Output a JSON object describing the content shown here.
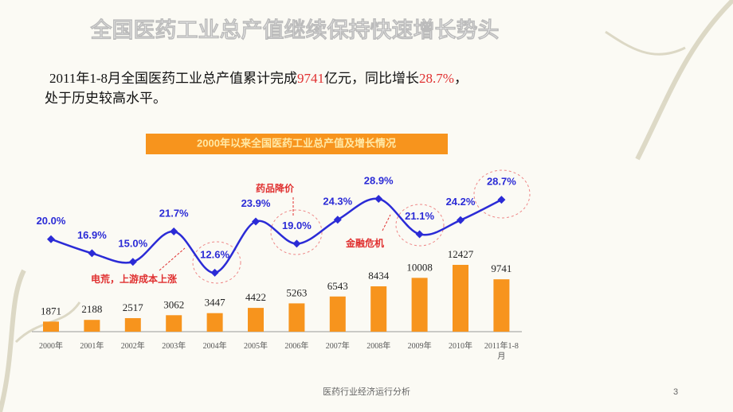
{
  "slide": {
    "title": "全国医药工业总产值继续保持快速增长势头",
    "body_runs": [
      {
        "text": "2011年1-8月全国医药工业总产值累计完成",
        "highlight": false
      },
      {
        "text": "9741",
        "highlight": true
      },
      {
        "text": "亿元，同比增长",
        "highlight": false
      },
      {
        "text": "28.7%",
        "highlight": true
      },
      {
        "text": "，",
        "highlight": false
      },
      {
        "text": "处于历史较高水平。",
        "highlight": false
      }
    ],
    "footer": "医药行业经济运行分析",
    "page_number": "3"
  },
  "chart_data": {
    "type": "bar-line",
    "title": "2000年以来全国医药工业总产值及增长情况",
    "categories": [
      "2000年",
      "2001年",
      "2002年",
      "2003年",
      "2004年",
      "2005年",
      "2006年",
      "2007年",
      "2008年",
      "2009年",
      "2010年",
      "2011年1-8月"
    ],
    "bars": {
      "color": "#f7941d",
      "values": [
        1871,
        2188,
        2517,
        3062,
        3447,
        4422,
        5263,
        6543,
        8434,
        10008,
        12427,
        9741
      ]
    },
    "growth": {
      "color": "#2b2bd6",
      "values": [
        20.0,
        16.9,
        15.0,
        21.7,
        12.6,
        23.9,
        19.0,
        24.3,
        28.9,
        21.1,
        24.2,
        28.7
      ],
      "value_labels": [
        "20.0%",
        "16.9%",
        "15.0%",
        "21.7%",
        "12.6%",
        "23.9%",
        "19.0%",
        "24.3%",
        "28.9%",
        "21.1%",
        "24.2%",
        "28.7%"
      ]
    },
    "annotations": [
      "药品降价",
      "金融危机",
      "电荒，上游成本上涨"
    ]
  }
}
